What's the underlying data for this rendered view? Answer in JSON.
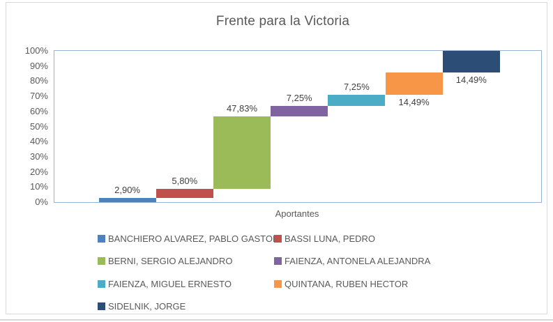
{
  "chart_data": {
    "type": "bar",
    "subtype": "waterfall-stacked-column",
    "title": "Frente para la Victoria",
    "xlabel": "Aportantes",
    "ylabel": "",
    "ylim": [
      0,
      100
    ],
    "y_ticks": [
      "0%",
      "10%",
      "20%",
      "30%",
      "40%",
      "50%",
      "60%",
      "70%",
      "80%",
      "90%",
      "100%"
    ],
    "grid": false,
    "legend_position": "bottom",
    "series": [
      {
        "name": "BANCHIERO ALVAREZ, PABLO GASTON",
        "value": 2.9,
        "label": "2,90%",
        "color": "#4F81BD",
        "label_placement": "above"
      },
      {
        "name": "BASSI LUNA, PEDRO",
        "value": 5.8,
        "label": "5,80%",
        "color": "#C0504D",
        "label_placement": "above"
      },
      {
        "name": "BERNI, SERGIO ALEJANDRO",
        "value": 47.83,
        "label": "47,83%",
        "color": "#9BBB59",
        "label_placement": "above"
      },
      {
        "name": "FAIENZA, ANTONELA ALEJANDRA",
        "value": 7.25,
        "label": "7,25%",
        "color": "#8064A2",
        "label_placement": "above"
      },
      {
        "name": "FAIENZA, MIGUEL ERNESTO",
        "value": 7.25,
        "label": "7,25%",
        "color": "#4BACC6",
        "label_placement": "above"
      },
      {
        "name": "QUINTANA, RUBEN HECTOR",
        "value": 14.49,
        "label": "14,49%",
        "color": "#F79646",
        "label_placement": "below"
      },
      {
        "name": "SIDELNIK, JORGE",
        "value": 14.49,
        "label": "14,49%",
        "color": "#2C4D75",
        "label_placement": "below"
      }
    ],
    "cumulative_ends": [
      2.9,
      8.7,
      56.53,
      63.78,
      71.03,
      85.52,
      100.0
    ]
  },
  "colors": {
    "title_text": "#595959",
    "axis_text": "#595959",
    "data_label_text": "#404040",
    "plot_border": "#95B3D7",
    "frame_border": "#D9D9D9",
    "background": "#FFFFFF"
  }
}
